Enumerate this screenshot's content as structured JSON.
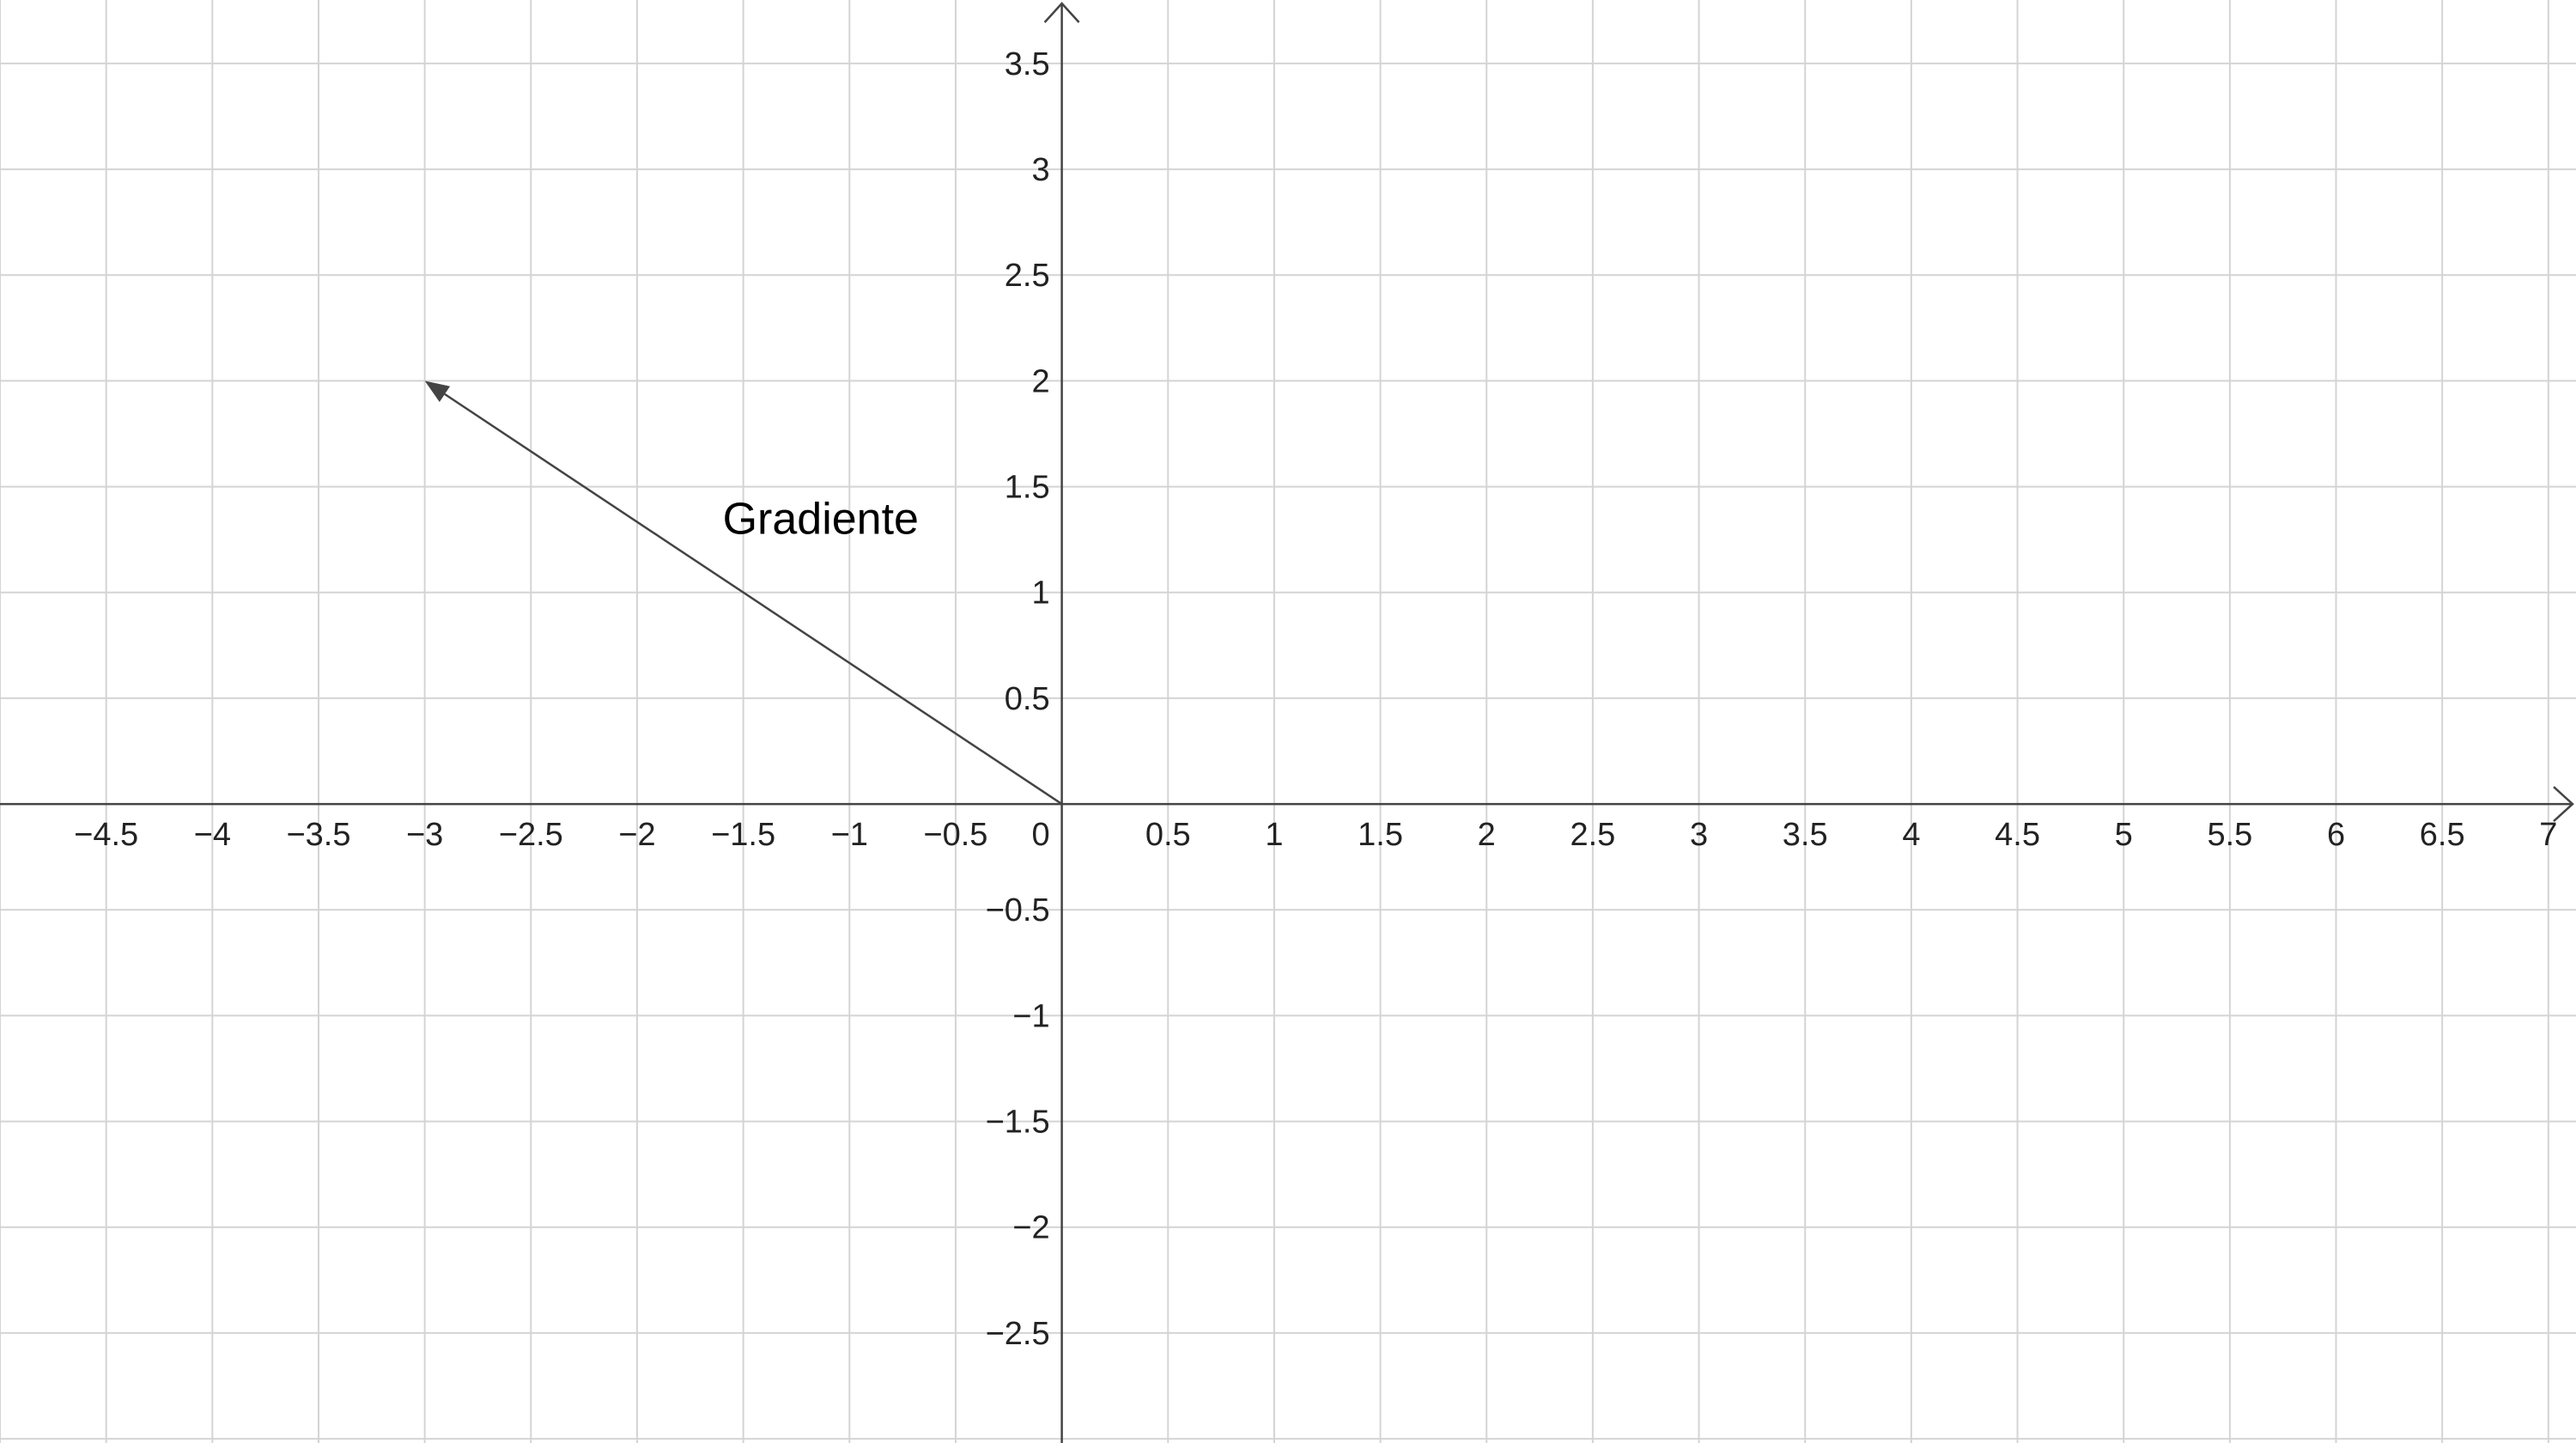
{
  "graph": {
    "x_range": [
      -5,
      7.13
    ],
    "y_range": [
      -3.02,
      3.8
    ],
    "grid_step": 0.5,
    "x_ticks": [
      "−4.5",
      "−4",
      "−3.5",
      "−3",
      "−2.5",
      "−2",
      "−1.5",
      "−1",
      "−0.5",
      "0",
      "0.5",
      "1",
      "1.5",
      "2",
      "2.5",
      "3",
      "3.5",
      "4",
      "4.5",
      "5",
      "5.5",
      "6",
      "6.5",
      "7"
    ],
    "x_tick_values": [
      -4.5,
      -4,
      -3.5,
      -3,
      -2.5,
      -2,
      -1.5,
      -1,
      -0.5,
      0,
      0.5,
      1,
      1.5,
      2,
      2.5,
      3,
      3.5,
      4,
      4.5,
      5,
      5.5,
      6,
      6.5,
      7
    ],
    "y_ticks": [
      "3.5",
      "3",
      "2.5",
      "2",
      "1.5",
      "1",
      "0.5",
      "−0.5",
      "−1",
      "−1.5",
      "−2",
      "−2.5"
    ],
    "y_tick_values": [
      3.5,
      3,
      2.5,
      2,
      1.5,
      1,
      0.5,
      -0.5,
      -1,
      -1.5,
      -2,
      -2.5
    ],
    "colors": {
      "grid": "#d4d4d4",
      "axis": "#444444",
      "vector": "#444444"
    }
  },
  "vector": {
    "label": "Gradiente",
    "start": [
      0,
      0
    ],
    "end": [
      -3,
      2
    ],
    "label_anchor": [
      -1.5,
      1.35
    ]
  }
}
